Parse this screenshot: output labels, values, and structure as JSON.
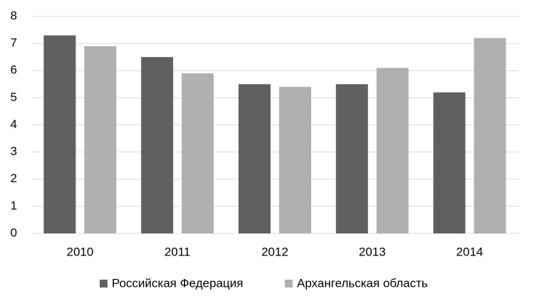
{
  "chart_data": {
    "type": "bar",
    "categories": [
      "2010",
      "2011",
      "2012",
      "2013",
      "2014"
    ],
    "series": [
      {
        "name": "Российская Федерация",
        "color": "#606060",
        "values": [
          7.3,
          6.5,
          5.5,
          5.5,
          5.2
        ]
      },
      {
        "name": "Архангельская область",
        "color": "#b0b0b0",
        "values": [
          6.9,
          5.9,
          5.4,
          6.1,
          7.2
        ]
      }
    ],
    "ylim": [
      0,
      8
    ],
    "yticks": [
      0,
      1,
      2,
      3,
      4,
      5,
      6,
      7,
      8
    ],
    "grid": true,
    "legend": "bottom"
  }
}
